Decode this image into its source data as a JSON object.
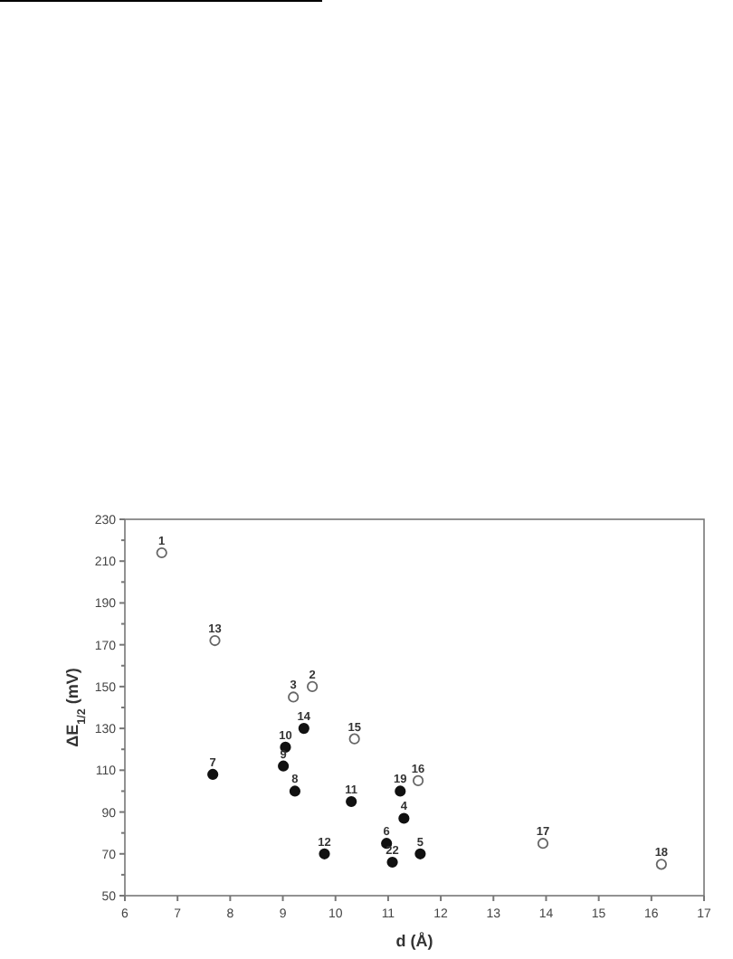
{
  "chart_data": {
    "type": "scatter",
    "xlabel": "d (Å)",
    "ylabel": "ΔE$_{1/2}$ (mV)",
    "xlim": [
      6,
      17
    ],
    "xticks": [
      6,
      7,
      8,
      9,
      10,
      11,
      12,
      13,
      14,
      15,
      16,
      17
    ],
    "ylim": [
      50,
      230
    ],
    "yticks": [
      50,
      {
        "value": 60,
        "label": null
      },
      70,
      {
        "value": 80,
        "label": null
      },
      90,
      {
        "value": 100,
        "label": null
      },
      110,
      {
        "value": 120,
        "label": null
      },
      130,
      {
        "value": 140,
        "label": null
      },
      150,
      {
        "value": 160,
        "label": null
      },
      170,
      {
        "value": 180,
        "label": null
      },
      190,
      {
        "value": 200,
        "label": null
      },
      210,
      {
        "value": 220,
        "label": null
      },
      230
    ],
    "marker": "circle",
    "grid": false,
    "series": [
      {
        "color": "#666666",
        "x": [
          6.7,
          7.71,
          9.2,
          9.56,
          10.36,
          11.57,
          13.94,
          16.19
        ],
        "values": [
          214,
          172,
          145,
          150,
          125,
          105,
          75,
          65
        ]
      },
      {
        "color": "#111111",
        "x": [
          9.4,
          9.05,
          9.01,
          7.67,
          9.23,
          10.3,
          9.79,
          10.97,
          11.08,
          11.23,
          11.3,
          11.61
        ],
        "values": [
          130,
          121,
          112,
          108,
          100,
          95,
          70,
          75,
          66,
          100,
          87,
          70
        ]
      }
    ],
    "annotations": [
      {
        "text": "1",
        "x": 6.7,
        "y": 214
      },
      {
        "text": "13",
        "x": 7.71,
        "y": 172
      },
      {
        "text": "3",
        "x": 9.2,
        "y": 145
      },
      {
        "text": "2",
        "x": 9.56,
        "y": 150
      },
      {
        "text": "15",
        "x": 10.36,
        "y": 125
      },
      {
        "text": "16",
        "x": 11.57,
        "y": 105
      },
      {
        "text": "17",
        "x": 13.94,
        "y": 75
      },
      {
        "text": "18",
        "x": 16.19,
        "y": 65
      },
      {
        "text": "14",
        "x": 9.4,
        "y": 130
      },
      {
        "text": "10",
        "x": 9.05,
        "y": 121
      },
      {
        "text": "9",
        "x": 9.01,
        "y": 112
      },
      {
        "text": "7",
        "x": 7.67,
        "y": 108
      },
      {
        "text": "8",
        "x": 9.23,
        "y": 100
      },
      {
        "text": "11",
        "x": 10.3,
        "y": 95
      },
      {
        "text": "12",
        "x": 9.79,
        "y": 70
      },
      {
        "text": "6",
        "x": 10.97,
        "y": 75
      },
      {
        "text": "22",
        "x": 11.08,
        "y": 66
      },
      {
        "text": "19",
        "x": 11.23,
        "y": 100
      },
      {
        "text": "4",
        "x": 11.3,
        "y": 87
      },
      {
        "text": "5",
        "x": 11.61,
        "y": 70
      }
    ]
  }
}
